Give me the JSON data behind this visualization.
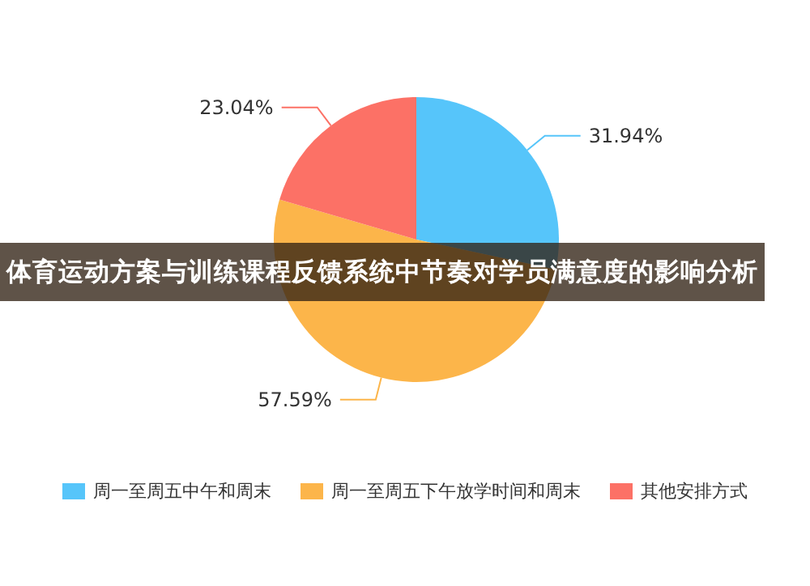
{
  "chart_data": {
    "type": "pie",
    "title": "体育运动方案与训练课程反馈系统中节奏对学员满意度的影响分析",
    "categories": [
      "周一至周五中午和周末",
      "周一至周五下午放学时间和周末",
      "其他安排方式"
    ],
    "values": [
      31.94,
      57.59,
      23.04
    ],
    "colors": [
      "#56c5fa",
      "#fcb54a",
      "#fc7166"
    ],
    "value_labels": [
      "31.94%",
      "57.59%",
      "23.04%"
    ],
    "legend": "bottom"
  }
}
